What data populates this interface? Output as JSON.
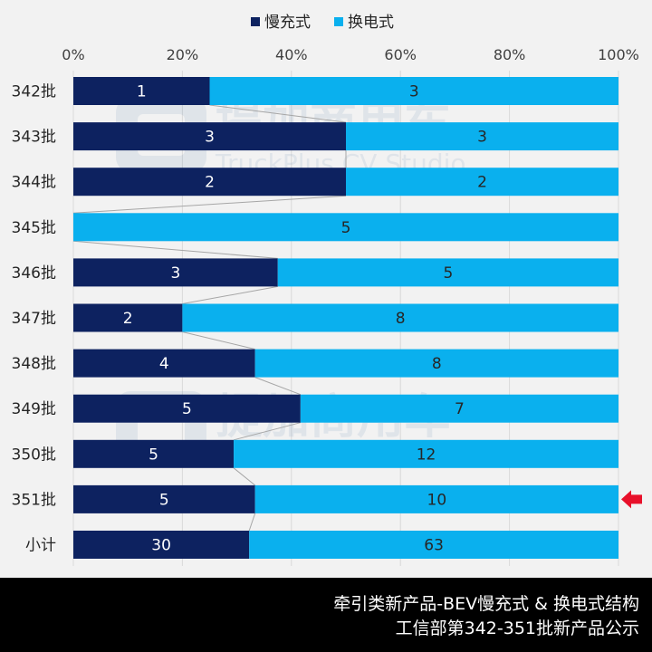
{
  "chart_data": {
    "type": "bar",
    "stacked": "percent",
    "orientation": "horizontal",
    "categories": [
      "342批",
      "343批",
      "344批",
      "345批",
      "346批",
      "347批",
      "348批",
      "349批",
      "350批",
      "351批",
      "小计"
    ],
    "series": [
      {
        "name": "慢充式",
        "values": [
          1,
          3,
          2,
          0,
          3,
          2,
          4,
          5,
          5,
          5,
          30
        ],
        "color": "#0d2260"
      },
      {
        "name": "换电式",
        "values": [
          3,
          3,
          2,
          5,
          5,
          8,
          8,
          7,
          12,
          10,
          63
        ],
        "color": "#0ab0ee"
      }
    ],
    "xlim": [
      0,
      100
    ],
    "xticks": [
      "0%",
      "20%",
      "40%",
      "60%",
      "80%",
      "100%"
    ],
    "legend": "top",
    "grid": true,
    "highlighted_category": "351批",
    "highlight_color": "#e8102a"
  },
  "footer": {
    "line1": "牵引类新产品-BEV慢充式 & 换电式结构",
    "line2": "工信部第342-351批新产品公示"
  },
  "watermark": {
    "text": "提加商用车",
    "subtext": "TruckPlus CV Studio"
  }
}
